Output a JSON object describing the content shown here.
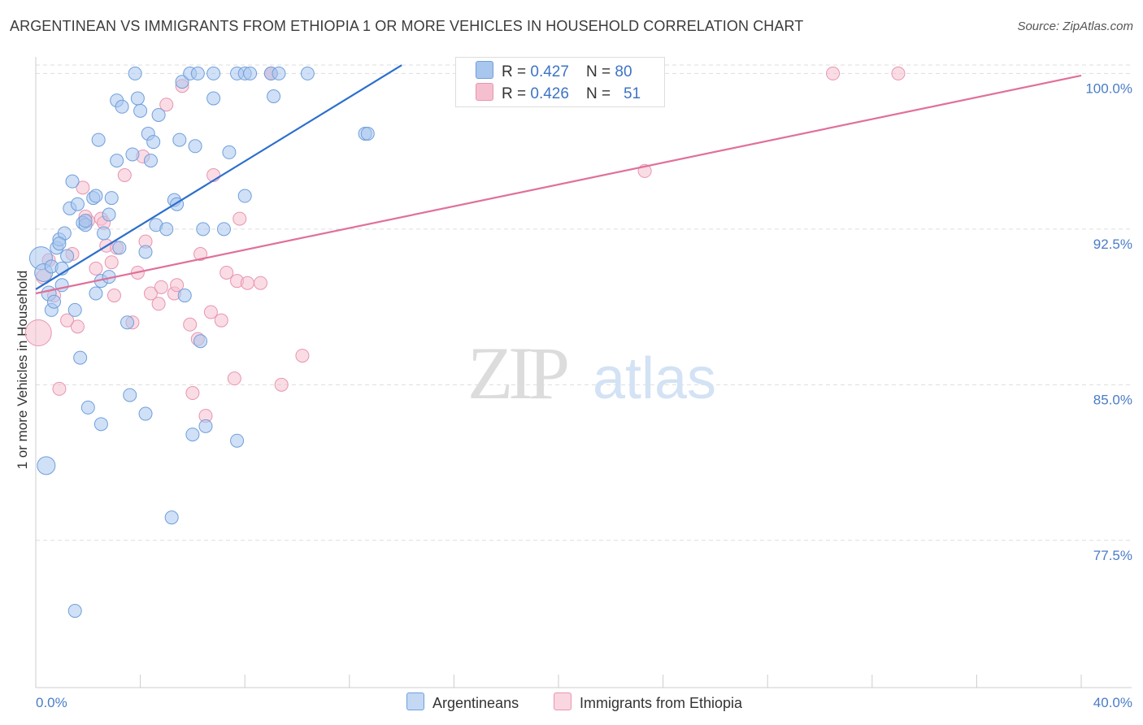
{
  "title": "ARGENTINEAN VS IMMIGRANTS FROM ETHIOPIA 1 OR MORE VEHICLES IN HOUSEHOLD CORRELATION CHART",
  "source": "Source: ZipAtlas.com",
  "watermark": {
    "zip": "ZIP",
    "atlas": "atlas"
  },
  "legend_top": [
    {
      "r_label": "R = ",
      "r_value": "0.427",
      "n_label": "N = ",
      "n_value": "80"
    },
    {
      "r_label": "R = ",
      "r_value": "0.426",
      "n_label": "N = ",
      "n_value": "51"
    }
  ],
  "colors": {
    "blue_fill": "#a9c6ee",
    "blue_stroke": "#6f9fdc",
    "blue_line": "#2b6fcc",
    "pink_fill": "#f6bfd0",
    "pink_stroke": "#e895b0",
    "pink_line": "#e0709a",
    "grid": "#dddddd",
    "tick_text": "#4a7cc7"
  },
  "chart_data": {
    "type": "scatter",
    "title": "ARGENTINEAN VS IMMIGRANTS FROM ETHIOPIA 1 OR MORE VEHICLES IN HOUSEHOLD CORRELATION CHART",
    "xlabel": "",
    "ylabel": "1 or more Vehicles in Household",
    "xlim": [
      0,
      40
    ],
    "ylim": [
      70.4,
      100.8
    ],
    "x_tick_labels": [
      {
        "value": 0,
        "label": "0.0%"
      },
      {
        "value": 40,
        "label": "40.0%"
      }
    ],
    "x_minor_ticks": [
      0,
      4,
      8,
      12,
      16,
      20,
      24,
      28,
      32,
      36,
      40
    ],
    "y_ticks": [
      {
        "value": 100,
        "label": "100.0%"
      },
      {
        "value": 92.5,
        "label": "92.5%"
      },
      {
        "value": 85,
        "label": "85.0%"
      },
      {
        "value": 77.5,
        "label": "77.5%"
      }
    ],
    "grid": true,
    "legend_position": "bottom",
    "series": [
      {
        "name": "Argentineans",
        "color": "#a9c6ee",
        "trend": {
          "x0": 0,
          "y0": 89.6,
          "x1": 14,
          "y1": 100.4
        },
        "points": [
          [
            0.2,
            91.1,
            14
          ],
          [
            0.3,
            90.4,
            11
          ],
          [
            0.4,
            81.1,
            11
          ],
          [
            0.5,
            89.4,
            9
          ],
          [
            0.6,
            88.6,
            8
          ],
          [
            0.8,
            91.6,
            8
          ],
          [
            0.6,
            90.7,
            8
          ],
          [
            0.7,
            89.0,
            8
          ],
          [
            0.9,
            92.0,
            8
          ],
          [
            1.0,
            89.8,
            8
          ],
          [
            1.1,
            92.3,
            8
          ],
          [
            1.2,
            91.2,
            8
          ],
          [
            1.3,
            93.5,
            8
          ],
          [
            1.4,
            94.8,
            8
          ],
          [
            1.5,
            88.6,
            8
          ],
          [
            1.6,
            93.7,
            8
          ],
          [
            1.7,
            86.3,
            8
          ],
          [
            1.8,
            92.8,
            8
          ],
          [
            1.9,
            92.7,
            8
          ],
          [
            2.0,
            83.9,
            8
          ],
          [
            2.2,
            94.0,
            8
          ],
          [
            2.3,
            89.4,
            8
          ],
          [
            2.4,
            96.8,
            8
          ],
          [
            2.5,
            83.1,
            8
          ],
          [
            2.5,
            90.0,
            8
          ],
          [
            2.6,
            92.3,
            8
          ],
          [
            2.8,
            90.2,
            8
          ],
          [
            2.9,
            94.0,
            8
          ],
          [
            2.8,
            93.2,
            8
          ],
          [
            3.1,
            95.8,
            8
          ],
          [
            3.1,
            98.7,
            8
          ],
          [
            3.2,
            91.6,
            8
          ],
          [
            3.3,
            98.4,
            8
          ],
          [
            3.5,
            88.0,
            8
          ],
          [
            3.6,
            84.5,
            8
          ],
          [
            3.7,
            96.1,
            8
          ],
          [
            3.8,
            100.0,
            8
          ],
          [
            3.9,
            98.8,
            8
          ],
          [
            4.0,
            98.2,
            8
          ],
          [
            4.2,
            83.6,
            8
          ],
          [
            4.2,
            91.4,
            8
          ],
          [
            4.3,
            97.1,
            8
          ],
          [
            4.4,
            95.8,
            8
          ],
          [
            4.5,
            96.7,
            8
          ],
          [
            4.6,
            92.7,
            8
          ],
          [
            4.7,
            98.0,
            8
          ],
          [
            5.0,
            92.5,
            8
          ],
          [
            5.2,
            78.6,
            8
          ],
          [
            5.3,
            93.9,
            8
          ],
          [
            5.4,
            93.7,
            8
          ],
          [
            5.5,
            96.8,
            8
          ],
          [
            5.6,
            99.6,
            8
          ],
          [
            5.7,
            89.3,
            8
          ],
          [
            5.9,
            100.0,
            8
          ],
          [
            6.0,
            82.6,
            8
          ],
          [
            6.1,
            96.5,
            8
          ],
          [
            6.2,
            100.0,
            8
          ],
          [
            6.3,
            87.1,
            8
          ],
          [
            6.4,
            92.5,
            8
          ],
          [
            6.5,
            83.0,
            8
          ],
          [
            6.8,
            100.0,
            8
          ],
          [
            6.8,
            98.8,
            8
          ],
          [
            7.2,
            92.5,
            8
          ],
          [
            7.4,
            96.2,
            8
          ],
          [
            7.7,
            100.0,
            8
          ],
          [
            7.7,
            82.3,
            8
          ],
          [
            8.0,
            94.1,
            8
          ],
          [
            8.0,
            100.0,
            8
          ],
          [
            8.2,
            100.0,
            8
          ],
          [
            9.0,
            100.0,
            8
          ],
          [
            9.1,
            98.9,
            8
          ],
          [
            9.3,
            100.0,
            8
          ],
          [
            10.4,
            100.0,
            8
          ],
          [
            12.6,
            97.1,
            8
          ],
          [
            12.7,
            97.1,
            8
          ],
          [
            1.5,
            74.1,
            8
          ],
          [
            0.9,
            91.8,
            8
          ],
          [
            1.9,
            92.9,
            8
          ],
          [
            2.3,
            94.1,
            8
          ],
          [
            1.0,
            90.6,
            8
          ]
        ]
      },
      {
        "name": "Immigrants from Ethiopia",
        "color": "#f6bfd0",
        "trend": {
          "x0": 0,
          "y0": 89.4,
          "x1": 40,
          "y1": 99.9
        },
        "points": [
          [
            0.1,
            87.5,
            16
          ],
          [
            0.3,
            90.2,
            9
          ],
          [
            0.5,
            91.0,
            8
          ],
          [
            0.7,
            89.3,
            8
          ],
          [
            0.9,
            84.8,
            8
          ],
          [
            1.2,
            88.1,
            8
          ],
          [
            1.4,
            91.3,
            8
          ],
          [
            1.6,
            87.8,
            8
          ],
          [
            1.8,
            94.5,
            8
          ],
          [
            2.0,
            92.9,
            8
          ],
          [
            2.3,
            90.6,
            8
          ],
          [
            2.5,
            93.0,
            8
          ],
          [
            2.6,
            92.8,
            8
          ],
          [
            2.7,
            91.7,
            8
          ],
          [
            2.9,
            90.9,
            8
          ],
          [
            3.1,
            91.6,
            8
          ],
          [
            3.0,
            89.3,
            8
          ],
          [
            3.4,
            95.1,
            8
          ],
          [
            3.7,
            88.0,
            8
          ],
          [
            3.9,
            90.4,
            8
          ],
          [
            4.1,
            96.0,
            8
          ],
          [
            4.2,
            91.9,
            8
          ],
          [
            4.4,
            89.4,
            8
          ],
          [
            4.7,
            88.9,
            8
          ],
          [
            4.8,
            89.7,
            8
          ],
          [
            5.0,
            98.5,
            8
          ],
          [
            5.3,
            89.4,
            8
          ],
          [
            5.4,
            89.8,
            8
          ],
          [
            5.6,
            99.4,
            8
          ],
          [
            5.9,
            87.9,
            8
          ],
          [
            6.0,
            84.6,
            8
          ],
          [
            6.2,
            87.2,
            8
          ],
          [
            6.3,
            91.3,
            8
          ],
          [
            6.5,
            83.5,
            8
          ],
          [
            6.7,
            88.5,
            8
          ],
          [
            6.8,
            95.1,
            8
          ],
          [
            7.1,
            88.1,
            8
          ],
          [
            7.3,
            90.4,
            8
          ],
          [
            7.6,
            85.3,
            8
          ],
          [
            7.7,
            90.0,
            8
          ],
          [
            7.8,
            93.0,
            8
          ],
          [
            8.1,
            89.9,
            8
          ],
          [
            8.6,
            89.9,
            8
          ],
          [
            9.0,
            100.0,
            8
          ],
          [
            9.0,
            100.0,
            8
          ],
          [
            9.4,
            85.0,
            8
          ],
          [
            10.2,
            86.4,
            8
          ],
          [
            23.3,
            95.3,
            8
          ],
          [
            30.5,
            100.0,
            8
          ],
          [
            33.0,
            100.0,
            8
          ],
          [
            1.9,
            93.1,
            8
          ]
        ]
      }
    ]
  }
}
